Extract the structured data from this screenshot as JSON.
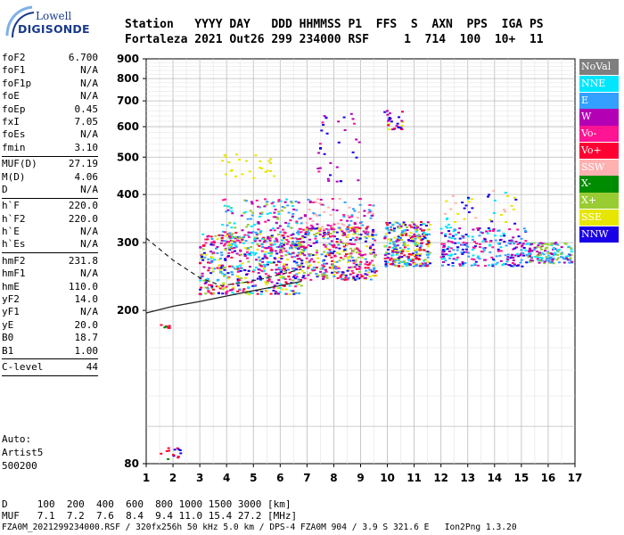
{
  "logo": {
    "line1": "Lowell",
    "line2": "DIGISONDE"
  },
  "header": {
    "labels": "Station   YYYY DAY   DDD HHMMSS P1  FFS  S  AXN  PPS  IGA PS",
    "values": "Fortaleza 2021 Out26 299 234000 RSF     1  714  100  10+  11"
  },
  "params_groups": [
    [
      {
        "k": "foF2",
        "v": "6.700"
      },
      {
        "k": "foF1",
        "v": "N/A"
      },
      {
        "k": "foF1p",
        "v": "N/A"
      },
      {
        "k": "foE",
        "v": "N/A"
      },
      {
        "k": "foEp",
        "v": "0.45"
      },
      {
        "k": "fxI",
        "v": "7.05"
      },
      {
        "k": "foEs",
        "v": "N/A"
      },
      {
        "k": "fmin",
        "v": "3.10"
      }
    ],
    [
      {
        "k": "MUF(D)",
        "v": "27.19"
      },
      {
        "k": "M(D)",
        "v": "4.06"
      },
      {
        "k": "D",
        "v": "N/A"
      }
    ],
    [
      {
        "k": "h`F",
        "v": "220.0"
      },
      {
        "k": "h`F2",
        "v": "220.0"
      },
      {
        "k": "h`E",
        "v": "N/A"
      },
      {
        "k": "h`Es",
        "v": "N/A"
      }
    ],
    [
      {
        "k": "hmF2",
        "v": "231.8"
      },
      {
        "k": "hmF1",
        "v": "N/A"
      },
      {
        "k": "hmE",
        "v": "110.0"
      },
      {
        "k": "yF2",
        "v": "14.0"
      },
      {
        "k": "yF1",
        "v": "N/A"
      },
      {
        "k": "yE",
        "v": "20.0"
      },
      {
        "k": "B0",
        "v": "18.7"
      },
      {
        "k": "B1",
        "v": "1.00"
      }
    ],
    [
      {
        "k": "C-level",
        "v": "44"
      }
    ]
  ],
  "auto": {
    "line1": "Auto:",
    "line2": "Artist5",
    "line3": "500200"
  },
  "footer": {
    "d_row": "D     100  200  400  600  800 1000 1500 3000 [km]",
    "muf_row": "MUF   7.1  7.2  7.6  8.4  9.4 11.0 15.4 27.2 [MHz]",
    "file_row": "FZA0M_2021299234000.RSF / 320fx256h 50 kHz 5.0 km / DPS-4 FZA0M 904 / 3.9 S 321.6 E   Ion2Png 1.3.20"
  },
  "legend": [
    {
      "label": "NoVal",
      "color": "#7f7f7f"
    },
    {
      "label": "NNE",
      "color": "#00e6ff"
    },
    {
      "label": "E",
      "color": "#33a0ff"
    },
    {
      "label": "W",
      "color": "#b400b4"
    },
    {
      "label": "Vo-",
      "color": "#ff1493"
    },
    {
      "label": "Vo+",
      "color": "#ff0033"
    },
    {
      "label": "SSW",
      "color": "#ffb0b0"
    },
    {
      "label": "X-",
      "color": "#008c00"
    },
    {
      "label": "X+",
      "color": "#99cc33"
    },
    {
      "label": "SSE",
      "color": "#e6e600"
    },
    {
      "label": "NNW",
      "color": "#1a00e6"
    }
  ],
  "chart_data": {
    "type": "scatter",
    "title": "",
    "xlabel": "",
    "ylabel": "",
    "xlim": [
      1,
      17
    ],
    "ylim": [
      80,
      900
    ],
    "x_ticks": [
      1,
      2,
      3,
      4,
      5,
      6,
      7,
      8,
      9,
      10,
      11,
      12,
      13,
      14,
      15,
      16,
      17
    ],
    "y_ticks": [
      80,
      200,
      300,
      400,
      500,
      600,
      700,
      800,
      900
    ],
    "y_scale": "log",
    "grid": true,
    "clusters": [
      {
        "x": [
          3.0,
          6.8
        ],
        "y": [
          220,
          320
        ],
        "density": 520,
        "colors": [
          "#ff1493",
          "#ff0033",
          "#b400b4",
          "#33a0ff",
          "#00e6ff",
          "#e6e600",
          "#99cc33",
          "#1a00e6"
        ]
      },
      {
        "x": [
          3.8,
          6.8
        ],
        "y": [
          290,
          390
        ],
        "density": 180,
        "colors": [
          "#33a0ff",
          "#00e6ff",
          "#b400b4",
          "#ff1493",
          "#99cc33"
        ]
      },
      {
        "x": [
          6.6,
          9.6
        ],
        "y": [
          240,
          330
        ],
        "density": 420,
        "colors": [
          "#ff1493",
          "#ff0033",
          "#b400b4",
          "#e6e600",
          "#1a00e6",
          "#33a0ff",
          "#99cc33"
        ]
      },
      {
        "x": [
          6.8,
          9.5
        ],
        "y": [
          320,
          390
        ],
        "density": 90,
        "colors": [
          "#ff1493",
          "#b400b4",
          "#33a0ff",
          "#ffb0b0"
        ]
      },
      {
        "x": [
          9.9,
          11.6
        ],
        "y": [
          260,
          340
        ],
        "density": 300,
        "colors": [
          "#1a00e6",
          "#ff0033",
          "#b400b4",
          "#33a0ff",
          "#00e6ff",
          "#e6e600",
          "#99cc33"
        ]
      },
      {
        "x": [
          12.0,
          15.2
        ],
        "y": [
          260,
          330
        ],
        "density": 240,
        "colors": [
          "#b400b4",
          "#ff1493",
          "#00e6ff",
          "#33a0ff",
          "#1a00e6"
        ]
      },
      {
        "x": [
          12.1,
          14.8
        ],
        "y": [
          330,
          410
        ],
        "density": 40,
        "colors": [
          "#e6e600",
          "#ffb0b0",
          "#00e6ff",
          "#1a00e6"
        ]
      },
      {
        "x": [
          15.2,
          16.9
        ],
        "y": [
          265,
          300
        ],
        "density": 150,
        "colors": [
          "#b400b4",
          "#33a0ff",
          "#00e6ff",
          "#99cc33"
        ]
      },
      {
        "x": [
          3.8,
          5.8
        ],
        "y": [
          440,
          510
        ],
        "density": 25,
        "colors": [
          "#e6e600"
        ]
      },
      {
        "x": [
          7.4,
          9.0
        ],
        "y": [
          430,
          650
        ],
        "density": 35,
        "colors": [
          "#b400b4",
          "#ff1493",
          "#1a00e6"
        ]
      },
      {
        "x": [
          9.9,
          10.6
        ],
        "y": [
          590,
          660
        ],
        "density": 30,
        "colors": [
          "#1a00e6",
          "#e6e600",
          "#b400b4",
          "#ff0033"
        ]
      },
      {
        "x": [
          1.4,
          1.9
        ],
        "y": [
          180,
          186
        ],
        "density": 8,
        "colors": [
          "#ff0033",
          "#008c00"
        ]
      },
      {
        "x": [
          1.5,
          2.3
        ],
        "y": [
          82,
          88
        ],
        "density": 14,
        "colors": [
          "#ff0033",
          "#008c00",
          "#1a00e6"
        ]
      }
    ],
    "trace_lines": [
      {
        "name": "dashed",
        "style": "dashed",
        "x": [
          1.0,
          2.0,
          3.0,
          3.8,
          4.6,
          5.4,
          6.2,
          6.8
        ],
        "y": [
          308,
          270,
          243,
          232,
          236,
          242,
          250,
          256
        ]
      },
      {
        "name": "lower-bound",
        "style": "solid",
        "x": [
          1.0,
          2.0,
          3.0,
          4.0,
          5.0,
          6.0,
          6.8
        ],
        "y": [
          197,
          205,
          211,
          218,
          225,
          232,
          238
        ]
      }
    ]
  }
}
